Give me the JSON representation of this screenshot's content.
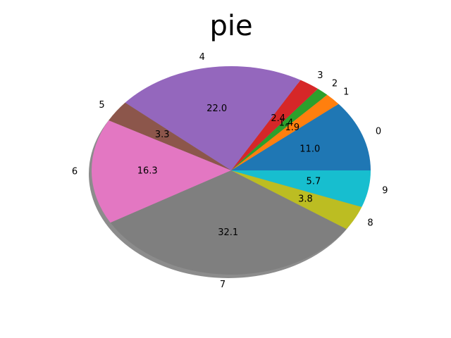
{
  "chart_data": {
    "type": "pie",
    "title": "pie",
    "categories": [
      "0",
      "1",
      "2",
      "3",
      "4",
      "5",
      "6",
      "7",
      "8",
      "9"
    ],
    "values": [
      11.0,
      1.9,
      1.4,
      2.4,
      22.0,
      3.3,
      16.3,
      32.1,
      3.8,
      5.7
    ],
    "value_labels": [
      "11.0",
      "1.9",
      "1.4",
      "2.4",
      "22.0",
      "3.3",
      "16.3",
      "32.1",
      "3.8",
      "5.7"
    ],
    "colors": [
      "#1f77b4",
      "#ff7f0e",
      "#2ca02c",
      "#d62728",
      "#9467bd",
      "#8c564b",
      "#e377c2",
      "#7f7f7f",
      "#bcbd22",
      "#17becf"
    ],
    "start_angle_deg": 0,
    "direction": "counterclockwise",
    "shadow": true,
    "legend": "none"
  }
}
